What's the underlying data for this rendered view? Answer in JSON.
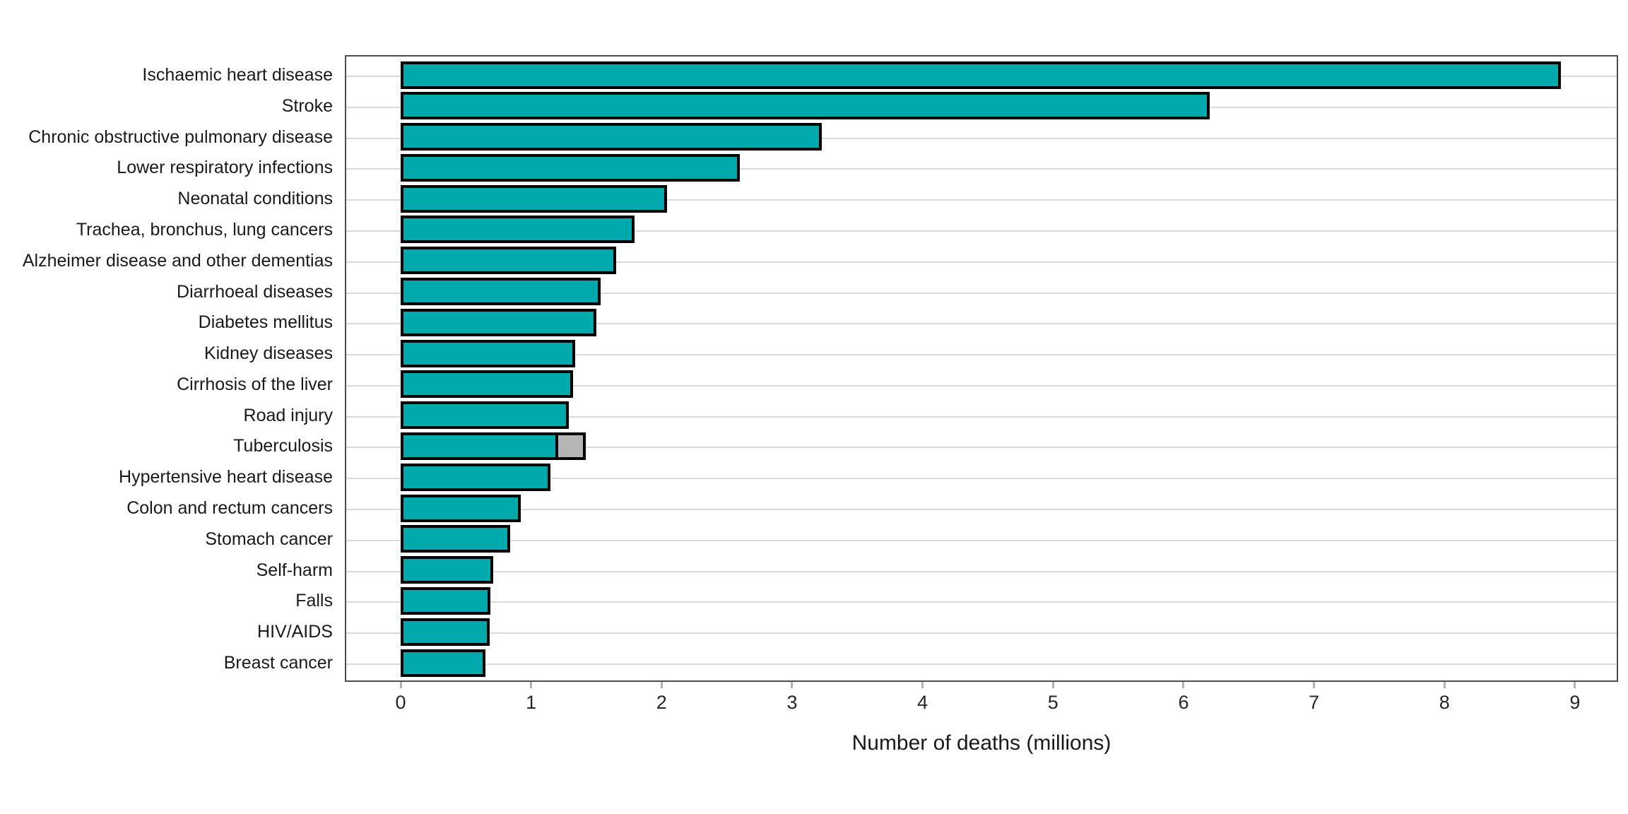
{
  "chart_data": {
    "type": "bar",
    "orientation": "horizontal",
    "title": "",
    "xlabel": "Number of deaths (millions)",
    "ylabel": "",
    "xlim": [
      0,
      9
    ],
    "xticks": [
      0,
      1,
      2,
      3,
      4,
      5,
      6,
      7,
      8,
      9
    ],
    "grid": "horizontal major gridlines at each category row, no vertical gridlines",
    "legend": "none",
    "categories": [
      "Ischaemic heart disease",
      "Stroke",
      "Chronic obstructive pulmonary disease",
      "Lower respiratory infections",
      "Neonatal conditions",
      "Trachea, bronchus, lung cancers",
      "Alzheimer disease and other dementias",
      "Diarrhoeal diseases",
      "Diabetes mellitus",
      "Kidney diseases",
      "Cirrhosis of the liver",
      "Road injury",
      "Tuberculosis",
      "Hypertensive heart disease",
      "Colon and rectum cancers",
      "Stomach cancer",
      "Self-harm",
      "Falls",
      "HIV/AIDS",
      "Breast cancer"
    ],
    "values": [
      8.89,
      6.2,
      3.23,
      2.6,
      2.04,
      1.79,
      1.65,
      1.53,
      1.5,
      1.34,
      1.32,
      1.29,
      1.21,
      1.15,
      0.92,
      0.84,
      0.71,
      0.69,
      0.68,
      0.65
    ],
    "extra_segments": [
      {
        "category": "Tuberculosis",
        "value": 0.21,
        "color": "#B5B5B5",
        "total_with_segment": 1.42
      }
    ],
    "colors": {
      "bar_fill": "#00A9AC",
      "bar_border": "#000000",
      "extra_segment_fill": "#B5B5B5",
      "gridline": "#D9D9D9",
      "panel_border": "#4D4D4D",
      "tick_mark": "#B3B3B3",
      "text": "#1A1A1A",
      "background": "#FFFFFF"
    }
  }
}
